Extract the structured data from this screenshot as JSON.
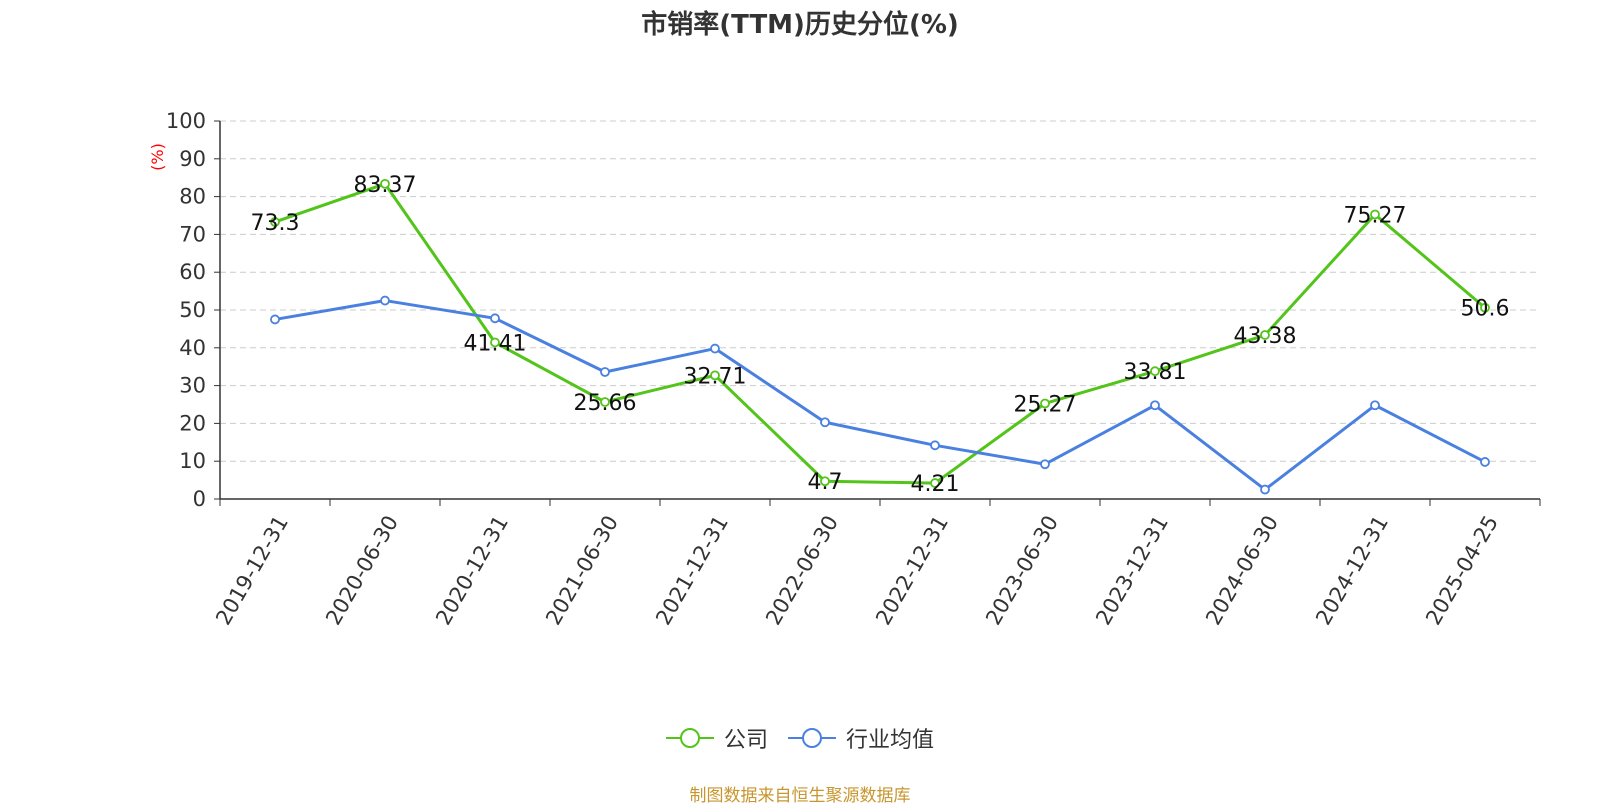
{
  "title": "市销率(TTM)历史分位(%)",
  "source": "制图数据来自恒生聚源数据库",
  "colors": {
    "company": "#52c41a",
    "industry": "#4a80e0",
    "unit_label": "#ff0000",
    "source": "#c8962e",
    "grid": "#cccccc",
    "axis": "#333333",
    "text": "#333333"
  },
  "chart_data": {
    "type": "line",
    "title": "市销率(TTM)历史分位(%)",
    "ylabel": "(%)",
    "ylim": [
      0,
      100
    ],
    "yticks": [
      0,
      10,
      20,
      30,
      40,
      50,
      60,
      70,
      80,
      90,
      100
    ],
    "grid": true,
    "legend_position": "bottom-center",
    "categories": [
      "2019-12-31",
      "2020-06-30",
      "2020-12-31",
      "2021-06-30",
      "2021-12-31",
      "2022-06-30",
      "2022-12-31",
      "2023-06-30",
      "2023-12-31",
      "2024-06-30",
      "2024-12-31",
      "2025-04-25"
    ],
    "series": [
      {
        "name": "公司",
        "color": "#52c41a",
        "show_labels": true,
        "values": [
          73.3,
          83.37,
          41.41,
          25.66,
          32.71,
          4.7,
          4.21,
          25.27,
          33.81,
          43.38,
          75.27,
          50.6
        ]
      },
      {
        "name": "行业均值",
        "color": "#4a80e0",
        "show_labels": false,
        "values": [
          47.5,
          52.5,
          47.8,
          33.6,
          39.8,
          20.3,
          14.2,
          9.2,
          24.8,
          2.5,
          24.8,
          9.8
        ]
      }
    ]
  }
}
